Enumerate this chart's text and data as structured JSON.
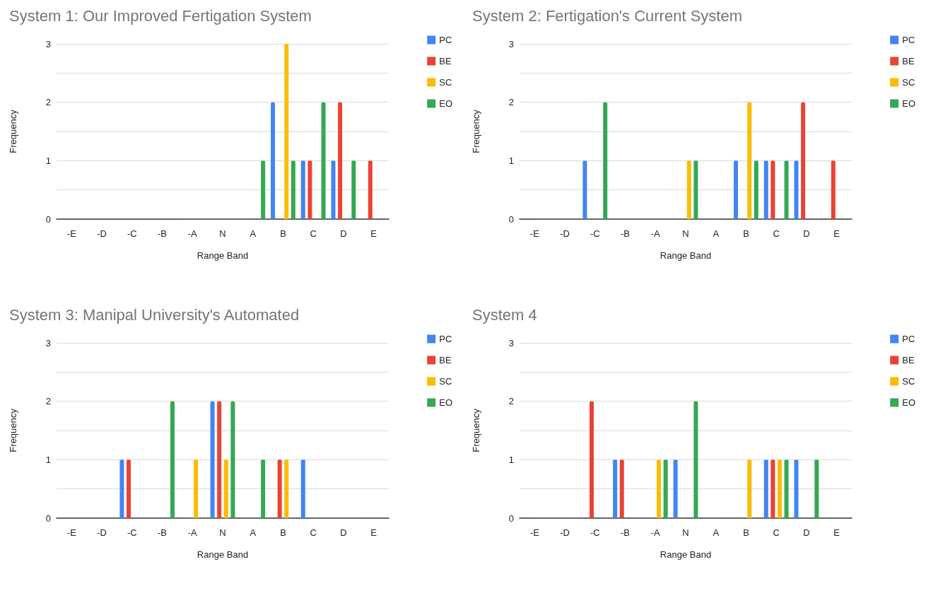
{
  "chart_data": [
    {
      "type": "bar",
      "title": "System 1: Our Improved Fertigation System",
      "xlabel": "Range Band",
      "ylabel": "Frequency",
      "categories": [
        "-E",
        "-D",
        "-C",
        "-B",
        "-A",
        "N",
        "A",
        "B",
        "C",
        "D",
        "E"
      ],
      "series": [
        {
          "name": "PC",
          "color": "#4285f4",
          "values": [
            0,
            0,
            0,
            0,
            0,
            0,
            0,
            2,
            1,
            1,
            0
          ]
        },
        {
          "name": "BE",
          "color": "#ea4335",
          "values": [
            0,
            0,
            0,
            0,
            0,
            0,
            0,
            0,
            1,
            2,
            1
          ]
        },
        {
          "name": "SC",
          "color": "#fbbc04",
          "values": [
            0,
            0,
            0,
            0,
            0,
            0,
            0,
            3,
            0,
            0,
            0
          ]
        },
        {
          "name": "EO",
          "color": "#34a853",
          "values": [
            0,
            0,
            0,
            0,
            0,
            0,
            1,
            1,
            2,
            1,
            0
          ]
        }
      ],
      "ylim": [
        0,
        3
      ],
      "yticks": [
        0,
        1,
        2,
        3
      ],
      "grid": "y",
      "legend": "right"
    },
    {
      "type": "bar",
      "title": "System 2: Fertigation's Current System",
      "xlabel": "Range Band",
      "ylabel": "Frequency",
      "categories": [
        "-E",
        "-D",
        "-C",
        "-B",
        "-A",
        "N",
        "A",
        "B",
        "C",
        "D",
        "E"
      ],
      "series": [
        {
          "name": "PC",
          "color": "#4285f4",
          "values": [
            0,
            0,
            1,
            0,
            0,
            0,
            0,
            1,
            1,
            1,
            0
          ]
        },
        {
          "name": "BE",
          "color": "#ea4335",
          "values": [
            0,
            0,
            0,
            0,
            0,
            0,
            0,
            0,
            1,
            2,
            1
          ]
        },
        {
          "name": "SC",
          "color": "#fbbc04",
          "values": [
            0,
            0,
            0,
            0,
            0,
            1,
            0,
            2,
            0,
            0,
            0
          ]
        },
        {
          "name": "EO",
          "color": "#34a853",
          "values": [
            0,
            0,
            2,
            0,
            0,
            1,
            0,
            1,
            1,
            0,
            0
          ]
        }
      ],
      "ylim": [
        0,
        3
      ],
      "yticks": [
        0,
        1,
        2,
        3
      ],
      "grid": "y",
      "legend": "right"
    },
    {
      "type": "bar",
      "title": "System 3: Manipal University's Automated",
      "xlabel": "Range Band",
      "ylabel": "Frequency",
      "categories": [
        "-E",
        "-D",
        "-C",
        "-B",
        "-A",
        "N",
        "A",
        "B",
        "C",
        "D",
        "E"
      ],
      "series": [
        {
          "name": "PC",
          "color": "#4285f4",
          "values": [
            0,
            0,
            1,
            0,
            0,
            2,
            0,
            0,
            1,
            0,
            0
          ]
        },
        {
          "name": "BE",
          "color": "#ea4335",
          "values": [
            0,
            0,
            1,
            0,
            0,
            2,
            0,
            1,
            0,
            0,
            0
          ]
        },
        {
          "name": "SC",
          "color": "#fbbc04",
          "values": [
            0,
            0,
            0,
            0,
            1,
            1,
            0,
            1,
            0,
            0,
            0
          ]
        },
        {
          "name": "EO",
          "color": "#34a853",
          "values": [
            0,
            0,
            0,
            2,
            0,
            2,
            1,
            0,
            0,
            0,
            0
          ]
        }
      ],
      "ylim": [
        0,
        3
      ],
      "yticks": [
        0,
        1,
        2,
        3
      ],
      "grid": "y",
      "legend": "right"
    },
    {
      "type": "bar",
      "title": "System 4",
      "xlabel": "Range Band",
      "ylabel": "Frequency",
      "categories": [
        "-E",
        "-D",
        "-C",
        "-B",
        "-A",
        "N",
        "A",
        "B",
        "C",
        "D",
        "E"
      ],
      "series": [
        {
          "name": "PC",
          "color": "#4285f4",
          "values": [
            0,
            0,
            0,
            1,
            0,
            1,
            0,
            0,
            1,
            1,
            0
          ]
        },
        {
          "name": "BE",
          "color": "#ea4335",
          "values": [
            0,
            0,
            2,
            1,
            0,
            0,
            0,
            0,
            1,
            0,
            0
          ]
        },
        {
          "name": "SC",
          "color": "#fbbc04",
          "values": [
            0,
            0,
            0,
            0,
            1,
            0,
            0,
            1,
            1,
            0,
            0
          ]
        },
        {
          "name": "EO",
          "color": "#34a853",
          "values": [
            0,
            0,
            0,
            0,
            1,
            2,
            0,
            0,
            1,
            1,
            0
          ]
        }
      ],
      "ylim": [
        0,
        3
      ],
      "yticks": [
        0,
        1,
        2,
        3
      ],
      "grid": "y",
      "legend": "right"
    }
  ]
}
